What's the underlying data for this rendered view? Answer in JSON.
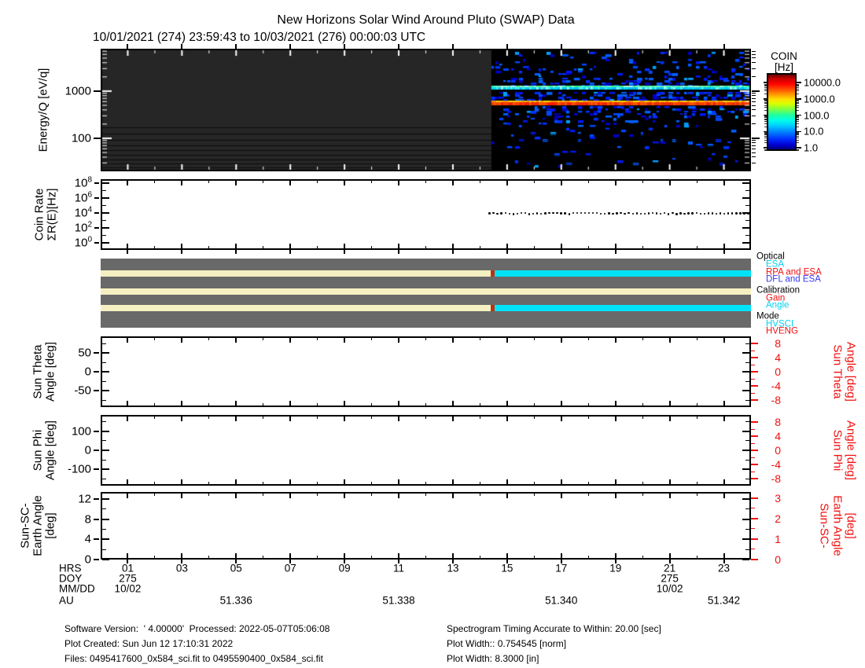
{
  "title": "New Horizons Solar Wind Around Pluto (SWAP) Data",
  "subtitle": "10/01/2021 (274) 23:59:43 to 10/03/2021 (276) 00:00:03 UTC",
  "colors": {
    "red_axis": "#f01010",
    "legend_cyan": "#00d2f2",
    "legend_red": "#f01010",
    "legend_blue": "#3838f0",
    "bar_gray": "#696969",
    "stripe_cream": "#f5f0c2",
    "stripe_cyan": "#00e2f8",
    "stripe_red": "#c03010",
    "no_data_gray": "#262626",
    "data_black": "#000000"
  },
  "chart_data": [
    {
      "id": "spectrogram",
      "type": "heatmap",
      "ylabel": "Energy/Q [eV/q]",
      "y_scale": "log",
      "y_range_ev": [
        20,
        7900
      ],
      "y_tick_values": [
        1000,
        100
      ],
      "y_tick_labels": [
        "1000",
        "100"
      ],
      "x_range_hours": [
        0,
        24
      ],
      "data_start_hour": 14.42,
      "features": {
        "no_data_region": "flat dark gray from 00:00 to ~14:25",
        "proton_line_ev": 560,
        "alpha_line_ev": 1120,
        "background": "scattered low-count blue noise on black"
      },
      "colorbar": {
        "title": "COIN",
        "units": "[Hz]",
        "scale": "log",
        "tick_labels": [
          "10000.0",
          "1000.0",
          "100.0",
          "10.0",
          "1.0"
        ],
        "tick_exponents": [
          4,
          3,
          2,
          1,
          0
        ]
      }
    },
    {
      "id": "coin_rate",
      "type": "scatter",
      "ylabel_lines": [
        "Coin Rate",
        "ΣR(E)[Hz]"
      ],
      "y_scale": "log",
      "y_tick_exponents": [
        8,
        6,
        4,
        2,
        0
      ],
      "y_minor_exponents": [
        7,
        5,
        3,
        1
      ],
      "y_exp_range": [
        -0.95,
        8.53
      ],
      "series": [
        {
          "name": "total-coincidence-rate",
          "style": "dotted",
          "approx_value_hz": 8500,
          "x_start_hour": 14.35,
          "x_end_hour": 23.9
        }
      ]
    },
    {
      "id": "status_bars",
      "type": "table",
      "rows": [
        {
          "name": "optical",
          "rel_y": 15,
          "segments": [
            {
              "color": "cream",
              "h0": 0,
              "h1": 14.4
            },
            {
              "color": "red",
              "h0": 14.4,
              "h1": 14.55
            },
            {
              "color": "cyan",
              "h0": 14.55,
              "h1": 24
            }
          ]
        },
        {
          "name": "calibration",
          "rel_y": 38,
          "segments": [
            {
              "color": "cream",
              "h0": 0,
              "h1": 24
            }
          ]
        },
        {
          "name": "mode",
          "rel_y": 59,
          "segments": [
            {
              "color": "cream",
              "h0": 0,
              "h1": 14.4
            },
            {
              "color": "red",
              "h0": 14.4,
              "h1": 14.55
            },
            {
              "color": "cyan",
              "h0": 14.55,
              "h1": 24
            }
          ]
        }
      ],
      "legend_groups": [
        {
          "label": "Optical",
          "items": [
            {
              "label": "ESA",
              "color": "cyan"
            },
            {
              "label": "RPA and ESA",
              "color": "red"
            },
            {
              "label": "DFL and ESA",
              "color": "blue"
            }
          ]
        },
        {
          "label": "Calibration",
          "items": [
            {
              "label": "Gain",
              "color": "red"
            },
            {
              "label": "Angle",
              "color": "cyan"
            }
          ]
        },
        {
          "label": "Mode",
          "items": [
            {
              "label": "HVSCI",
              "color": "cyan"
            },
            {
              "label": "HVENG",
              "color": "red"
            }
          ]
        }
      ]
    },
    {
      "id": "sun_theta",
      "type": "line",
      "ylabel_lines": [
        "Sun Theta",
        "Angle [deg]"
      ],
      "left_ticks": [
        50,
        0,
        -50
      ],
      "left_minor_ticks": [
        -75,
        -25,
        25,
        75
      ],
      "left_range": [
        -93.75,
        93.75
      ],
      "right_label_lines": [
        "Sun Theta",
        "Angle [deg]"
      ],
      "right_ticks": [
        8,
        4,
        0,
        -4,
        -8
      ],
      "right_minor_ticks": [
        -6,
        -2,
        2,
        6
      ],
      "right_range": [
        -10,
        10
      ],
      "series": []
    },
    {
      "id": "sun_phi",
      "type": "line",
      "ylabel_lines": [
        "Sun Phi",
        "Angle [deg]"
      ],
      "left_ticks": [
        100,
        0,
        -100
      ],
      "left_minor_ticks": [
        -150,
        -50,
        50,
        150
      ],
      "left_range": [
        -183.7,
        183.7
      ],
      "right_label_lines": [
        "Sun Phi",
        "Angle [deg]"
      ],
      "right_ticks": [
        8,
        4,
        0,
        -4,
        -8
      ],
      "right_minor_ticks": [
        -6,
        -2,
        2,
        6
      ],
      "right_range": [
        -10,
        10
      ],
      "series": []
    },
    {
      "id": "sun_sc_earth",
      "type": "line",
      "ylabel_lines": [
        "Sun-SC-",
        "Earth Angle",
        "[deg]"
      ],
      "left_ticks": [
        12,
        8,
        4,
        0
      ],
      "left_minor_ticks": [
        2,
        6,
        10
      ],
      "left_range": [
        0,
        13.4
      ],
      "right_label_lines": [
        "Sun-SC-",
        "Earth Angle",
        "[deg]"
      ],
      "right_ticks": [
        3,
        2,
        1,
        0
      ],
      "right_minor_ticks": [
        0.5,
        1.5,
        2.5
      ],
      "right_range": [
        0,
        3.3
      ],
      "series": []
    }
  ],
  "xaxis": {
    "row_labels": [
      "HRS",
      "DOY",
      "MM/DD",
      "AU"
    ],
    "hour_tick_values": [
      1,
      3,
      5,
      7,
      9,
      11,
      13,
      15,
      17,
      19,
      21,
      23
    ],
    "hour_labels": [
      "01",
      "03",
      "05",
      "07",
      "09",
      "11",
      "13",
      "15",
      "17",
      "19",
      "21",
      "23"
    ],
    "minor_hour_values": [
      2,
      4,
      6,
      8,
      10,
      12,
      14,
      16,
      18,
      20,
      22
    ],
    "doy_entries": [
      {
        "hour": 1,
        "label": "275"
      },
      {
        "hour": 21,
        "label": "275"
      }
    ],
    "mmdd_entries": [
      {
        "hour": 1,
        "label": "10/02"
      },
      {
        "hour": 21,
        "label": "10/02"
      }
    ],
    "au_entries": [
      {
        "hour": 5,
        "label": "51.336"
      },
      {
        "hour": 11,
        "label": "51.338"
      },
      {
        "hour": 17,
        "label": "51.340"
      },
      {
        "hour": 23,
        "label": "51.342"
      }
    ]
  },
  "footer": {
    "left": [
      "Software Version:  ' 4.00000'  Processed: 2022-05-07T05:06:08",
      "Plot Created: Sun Jun 12 17:10:31 2022",
      "Files: 0495417600_0x584_sci.fit to 0495590400_0x584_sci.fit"
    ],
    "right": [
      "Spectrogram Timing Accurate to Within: 20.00 [sec]",
      "Plot Width:: 0.754545 [norm]",
      "Plot Width: 8.3000 [in]"
    ]
  }
}
